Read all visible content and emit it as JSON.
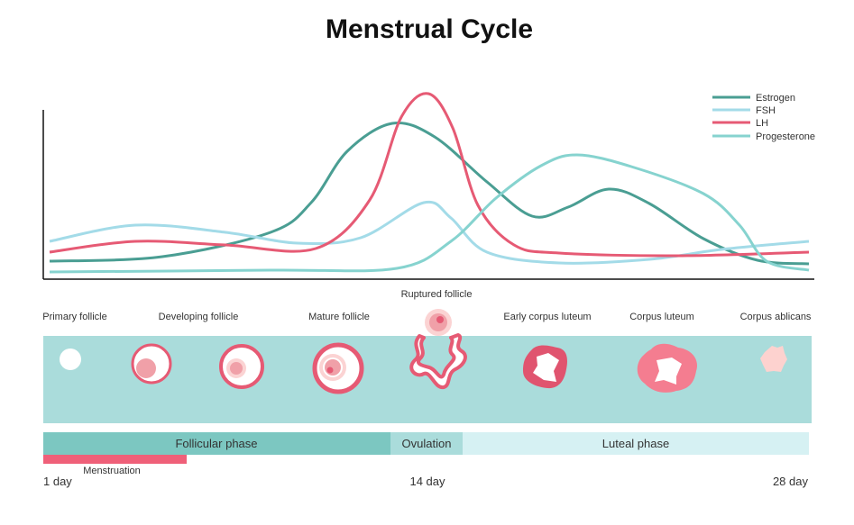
{
  "title": "Menstrual Cycle",
  "legend": [
    {
      "name": "Estrogen",
      "color": "#4a9e93"
    },
    {
      "name": "FSH",
      "color": "#a3dbe8"
    },
    {
      "name": "LH",
      "color": "#e65a74"
    },
    {
      "name": "Progesterone",
      "color": "#86d3cf"
    }
  ],
  "stages": {
    "primary": "Primary follicle",
    "developing": "Developing follicle",
    "mature": "Mature follicle",
    "ruptured": "Ruptured follicle",
    "early_corpus": "Early corpus luteum",
    "corpus": "Corpus luteum",
    "ablicans": "Corpus ablicans"
  },
  "phases": {
    "follicular": "Follicular phase",
    "ovulation": "Ovulation",
    "luteal": "Luteal phase",
    "menstruation": "Menstruation"
  },
  "days": {
    "start": "1 day",
    "mid": "14 day",
    "end": "28 day"
  },
  "colors": {
    "band": "#aadcdb",
    "follicular": "#7cc7c1",
    "ovulation": "#aadcdb",
    "luteal": "#d6f1f3",
    "menstruation": "#ef6079"
  }
}
